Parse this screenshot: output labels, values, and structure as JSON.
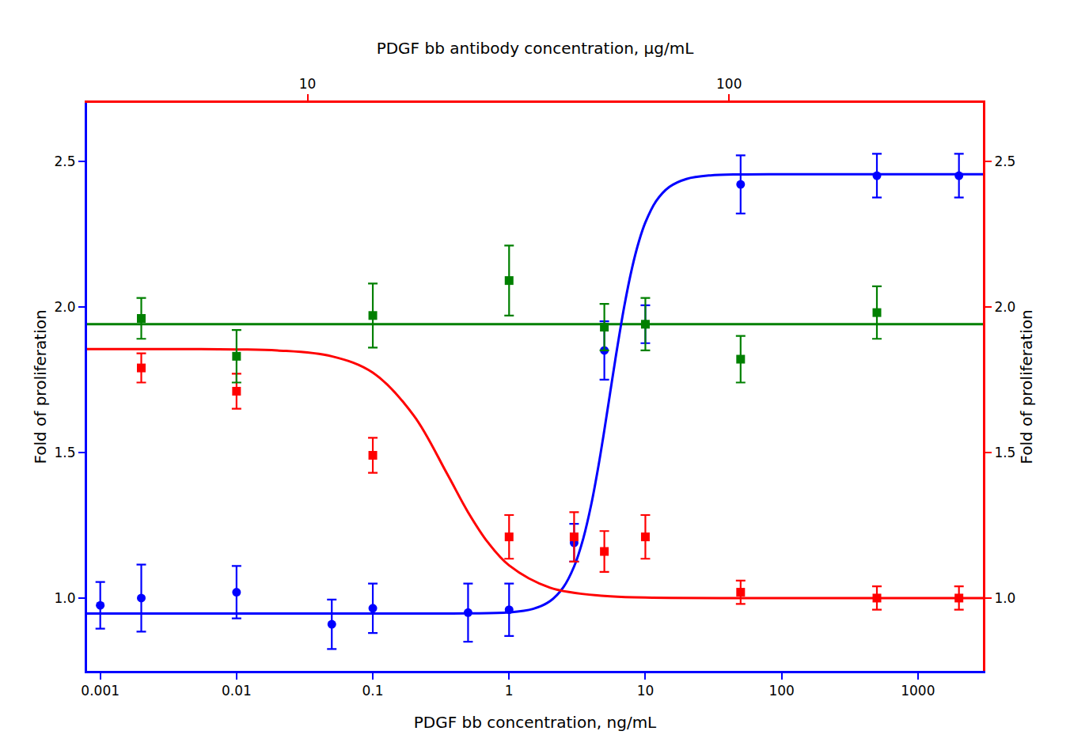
{
  "chart_data": {
    "type": "scatter",
    "xlabel": "PDGF bb concentration, ng/mL",
    "x2label": "PDGF bb antibody concentration, μg/mL",
    "ylabel": "Fold of proliferation",
    "y2label": "Fold of proliferation",
    "log": "x",
    "grid": false,
    "xlim": [
      0.0008,
      3000.0
    ],
    "xticks": [
      0.001,
      0.01,
      0.1,
      1,
      10,
      100,
      1000
    ],
    "x2lim": [
      3.0,
      400.0
    ],
    "x2ticks": [
      10,
      100
    ],
    "ylim": [
      0.75,
      2.7
    ],
    "yticks": [
      {
        "value": 1.0,
        "label": "1.0"
      },
      {
        "value": 1.5,
        "label": "1.5"
      },
      {
        "value": 2.0,
        "label": "2.0"
      },
      {
        "value": 2.5,
        "label": "2.5"
      }
    ],
    "y2lim": [
      0.75,
      2.7
    ],
    "y2ticks": [
      {
        "value": 1.0,
        "label": "1.0"
      },
      {
        "value": 1.5,
        "label": "1.5"
      },
      {
        "value": 2.0,
        "label": "2.0"
      },
      {
        "value": 2.5,
        "label": "2.5"
      }
    ],
    "series": [
      {
        "type": "line",
        "color": "#0000ff",
        "line_style": "solid",
        "x": [
          0.0008,
          0.001,
          0.01,
          0.1,
          0.5,
          1,
          1.5,
          2,
          2.5,
          3,
          3.5,
          4,
          4.5,
          5,
          5.5,
          6,
          7,
          8,
          9,
          10,
          12,
          15,
          20,
          30,
          50,
          100,
          1000,
          3000
        ],
        "values": [
          0.947,
          0.947,
          0.947,
          0.947,
          0.9473,
          0.9509,
          0.9628,
          0.9895,
          1.0368,
          1.1084,
          1.2041,
          1.3195,
          1.4466,
          1.5764,
          1.701,
          1.8149,
          2.0015,
          2.1349,
          2.2267,
          2.2894,
          2.3627,
          2.4113,
          2.4387,
          2.451,
          2.4543,
          2.455,
          2.455,
          2.455
        ]
      },
      {
        "type": "line",
        "color": "#ff0000",
        "line_style": "solid",
        "x": [
          0.0008,
          0.001,
          0.003,
          0.01,
          0.02,
          0.05,
          0.1,
          0.2,
          0.35,
          0.5,
          0.7,
          1,
          2,
          5,
          10,
          100,
          1000,
          3000
        ],
        "values": [
          1.855,
          1.855,
          1.8548,
          1.8536,
          1.8501,
          1.83,
          1.7738,
          1.6263,
          1.4275,
          1.2948,
          1.1908,
          1.1122,
          1.0356,
          1.0071,
          1.002,
          1.0,
          1.0,
          1.0
        ]
      },
      {
        "type": "hline",
        "color": "#008000",
        "line_style": "solid",
        "values": [
          1.94
        ]
      },
      {
        "type": "scatter",
        "color": "#0000ff",
        "marker": "circle",
        "x": [
          0.001,
          0.002,
          0.01,
          0.05,
          0.1,
          0.5,
          1.0,
          3.0,
          5.0,
          10.0,
          50.0,
          500.0,
          2000.0
        ],
        "values": [
          0.975,
          1.0,
          1.02,
          0.91,
          0.965,
          0.95,
          0.96,
          1.19,
          1.85,
          1.94,
          2.42,
          2.45,
          2.45
        ],
        "yerr": [
          0.08,
          0.115,
          0.09,
          0.085,
          0.085,
          0.1,
          0.09,
          0.065,
          0.1,
          0.065,
          0.1,
          0.075,
          0.075
        ]
      },
      {
        "type": "scatter",
        "color": "#ff0000",
        "marker": "square",
        "x": [
          0.002,
          0.01,
          0.1,
          1.0,
          3.0,
          5.0,
          10.0,
          50.0,
          500.0,
          2000.0
        ],
        "values": [
          1.79,
          1.71,
          1.49,
          1.21,
          1.21,
          1.16,
          1.21,
          1.02,
          1.0,
          1.0
        ],
        "yerr": [
          0.05,
          0.06,
          0.06,
          0.075,
          0.085,
          0.07,
          0.075,
          0.04,
          0.04,
          0.04
        ]
      },
      {
        "type": "scatter",
        "color": "#008000",
        "marker": "square",
        "x": [
          0.002,
          0.01,
          0.1,
          1.0,
          5.0,
          10.0,
          50.0,
          500.0
        ],
        "values": [
          1.96,
          1.83,
          1.97,
          2.09,
          1.93,
          1.94,
          1.82,
          1.98
        ],
        "yerr": [
          0.07,
          0.09,
          0.11,
          0.12,
          0.08,
          0.09,
          0.08,
          0.09
        ]
      }
    ]
  }
}
